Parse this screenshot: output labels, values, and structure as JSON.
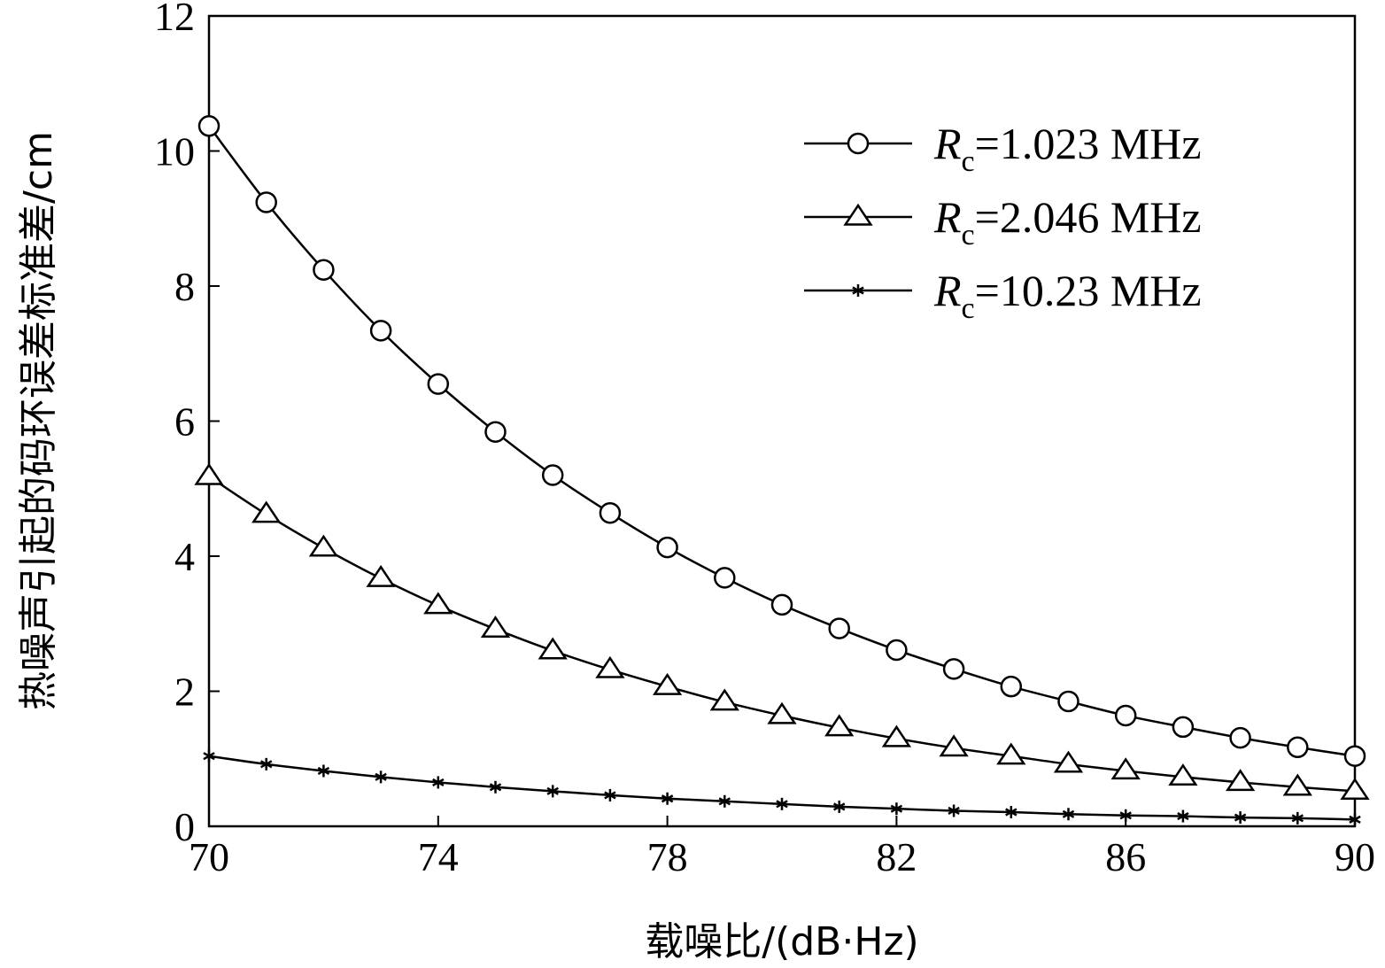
{
  "chart_data": {
    "type": "line",
    "title": "",
    "xlabel": "载噪比/(dB·Hz)",
    "ylabel": "热噪声引起的码环误差标准差/cm",
    "xlim": [
      70,
      90
    ],
    "ylim": [
      0,
      12
    ],
    "x_ticks": [
      "70",
      "74",
      "78",
      "82",
      "86",
      "90"
    ],
    "y_ticks": [
      "0",
      "2",
      "4",
      "6",
      "8",
      "10",
      "12"
    ],
    "grid": false,
    "legend_position": "top-right",
    "x": [
      70,
      71,
      72,
      73,
      74,
      75,
      76,
      77,
      78,
      79,
      80,
      81,
      82,
      83,
      84,
      85,
      86,
      87,
      88,
      89,
      90
    ],
    "series": [
      {
        "name": "Rc=1.023 MHz",
        "name_symbol": "R",
        "name_subscript": "c",
        "name_value": "=1.023 MHz",
        "marker": "circle",
        "values": [
          10.37,
          9.24,
          8.24,
          7.34,
          6.55,
          5.84,
          5.2,
          4.64,
          4.13,
          3.68,
          3.28,
          2.93,
          2.61,
          2.33,
          2.07,
          1.85,
          1.64,
          1.47,
          1.31,
          1.17,
          1.04
        ]
      },
      {
        "name": "Rc=2.046 MHz",
        "name_symbol": "R",
        "name_subscript": "c",
        "name_value": "=2.046 MHz",
        "marker": "triangle",
        "values": [
          5.18,
          4.62,
          4.12,
          3.67,
          3.27,
          2.92,
          2.6,
          2.32,
          2.07,
          1.84,
          1.64,
          1.46,
          1.3,
          1.16,
          1.04,
          0.92,
          0.82,
          0.73,
          0.65,
          0.58,
          0.52
        ]
      },
      {
        "name": "Rc=10.23 MHz",
        "name_symbol": "R",
        "name_subscript": "c",
        "name_value": "=10.23 MHz",
        "marker": "asterisk",
        "values": [
          1.04,
          0.92,
          0.82,
          0.73,
          0.65,
          0.58,
          0.52,
          0.46,
          0.41,
          0.37,
          0.33,
          0.29,
          0.26,
          0.23,
          0.21,
          0.18,
          0.16,
          0.15,
          0.13,
          0.12,
          0.1
        ]
      }
    ]
  }
}
